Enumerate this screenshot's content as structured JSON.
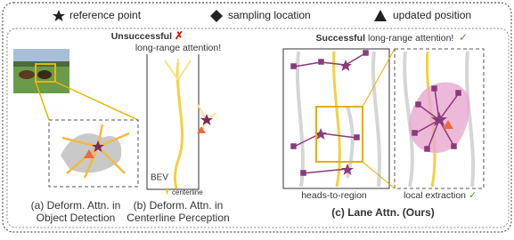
{
  "legend": [
    {
      "label": "reference point"
    },
    {
      "label": "sampling location"
    },
    {
      "label": "updated position"
    }
  ],
  "panels": [
    {
      "caption": [
        "(a) Deform. Attn. in",
        "Object Detection"
      ]
    },
    {
      "headline_bold": "Unsuccessful",
      "headline_mark": "✗",
      "headline_rest": "long-range attention!",
      "bev_label": "BEV",
      "centerline_label": "centerline",
      "caption": [
        "(b) Deform. Attn. in",
        "Centerline Perception"
      ]
    },
    {
      "headline_bold": "Successful",
      "headline_rest": "long-range attention!",
      "headline_mark": "✓",
      "left_label": "heads-to-region",
      "right_label": "local extraction",
      "right_mark": "✓",
      "caption": [
        "(c) Lane Attn. (Ours)"
      ]
    }
  ]
}
